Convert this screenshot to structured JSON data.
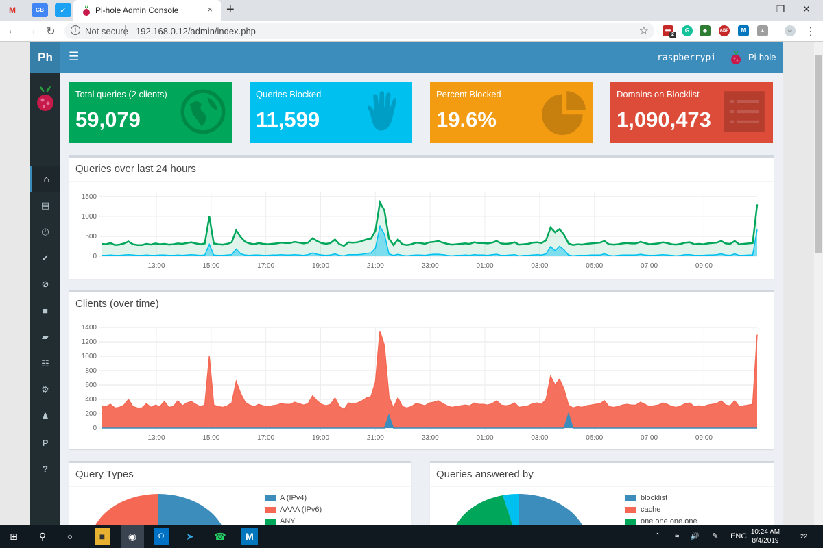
{
  "browser": {
    "pinned_tabs": [
      {
        "icon": "gmail-icon",
        "text": "M",
        "color": "#d93025"
      },
      {
        "icon": "google-translate-icon",
        "text": "GB",
        "color": "#4285f4"
      },
      {
        "icon": "twitter-icon",
        "text": "🐦",
        "color": "#1da1f2"
      }
    ],
    "active_tab_title": "Pi-hole Admin Console",
    "tab_close": "×",
    "new_tab": "+",
    "security_label": "Not secure",
    "url": "192.168.0.12/admin/index.php",
    "extension_badge": "2",
    "extensions": [
      "lastpass-icon",
      "grammarly-icon",
      "raindrop-icon",
      "abp-icon",
      "m-icon",
      "drive-icon"
    ]
  },
  "header": {
    "logo_text": "Ph",
    "hostname": "raspberrypi",
    "brand": "Pi-hole"
  },
  "sidebar": {
    "items": [
      {
        "icon": "home-icon",
        "active": true
      },
      {
        "icon": "document-icon"
      },
      {
        "icon": "clock-icon"
      },
      {
        "icon": "check-circle-icon"
      },
      {
        "icon": "ban-icon"
      },
      {
        "icon": "square-icon"
      },
      {
        "icon": "folder-icon"
      },
      {
        "icon": "sitemap-icon"
      },
      {
        "icon": "gears-icon"
      },
      {
        "icon": "user-times-icon"
      },
      {
        "icon": "paypal-icon"
      },
      {
        "icon": "question-circle-icon"
      }
    ]
  },
  "stats": [
    {
      "label": "Total queries (2 clients)",
      "value": "59,079",
      "color": "#00a65a",
      "icon": "globe-icon"
    },
    {
      "label": "Queries Blocked",
      "value": "11,599",
      "color": "#00c0ef",
      "icon": "hand-icon"
    },
    {
      "label": "Percent Blocked",
      "value": "19.6%",
      "color": "#f39c12",
      "icon": "pie-chart-icon"
    },
    {
      "label": "Domains on Blocklist",
      "value": "1,090,473",
      "color": "#dd4b39",
      "icon": "list-icon"
    }
  ],
  "chart_data": [
    {
      "type": "area",
      "title": "Queries over last 24 hours",
      "x_ticks": [
        "13:00",
        "15:00",
        "17:00",
        "19:00",
        "21:00",
        "23:00",
        "01:00",
        "03:00",
        "05:00",
        "07:00",
        "09:00"
      ],
      "y_ticks": [
        "1500",
        "1000",
        "500",
        "0"
      ],
      "ylim": [
        0,
        1600
      ],
      "grid": true,
      "series": [
        {
          "color": "#00a65a",
          "values": [
            310,
            300,
            330,
            280,
            290,
            320,
            370,
            300,
            280,
            280,
            310,
            290,
            320,
            300,
            310,
            290,
            300,
            320,
            310,
            330,
            350,
            320,
            300,
            320,
            1000,
            320,
            300,
            290,
            310,
            350,
            650,
            480,
            360,
            320,
            300,
            330,
            310,
            300,
            310,
            320,
            340,
            330,
            330,
            360,
            340,
            320,
            340,
            450,
            380,
            330,
            310,
            330,
            420,
            300,
            260,
            350,
            340,
            350,
            380,
            420,
            440,
            640,
            1350,
            1150,
            440,
            280,
            420,
            300,
            280,
            300,
            340,
            330,
            310,
            350,
            360,
            380,
            340,
            310,
            290,
            300,
            310,
            320,
            310,
            350,
            330,
            330,
            320,
            340,
            380,
            320,
            310,
            320,
            350,
            290,
            300,
            310,
            340,
            350,
            330,
            400,
            720,
            600,
            680,
            540,
            320,
            280,
            300,
            290,
            310,
            320,
            330,
            340,
            380,
            300,
            290,
            300,
            320,
            330,
            320,
            320,
            360,
            330,
            300,
            310,
            320,
            350,
            330,
            300,
            290,
            310,
            340,
            350,
            300,
            310,
            300,
            320,
            330,
            340,
            380,
            320,
            310,
            380,
            300,
            310,
            320,
            330,
            1300
          ]
        },
        {
          "color": "#00c0ef",
          "values": [
            20,
            20,
            30,
            20,
            20,
            30,
            40,
            30,
            20,
            20,
            30,
            20,
            20,
            30,
            30,
            20,
            20,
            30,
            20,
            30,
            40,
            30,
            20,
            30,
            300,
            30,
            20,
            20,
            30,
            40,
            180,
            60,
            30,
            20,
            30,
            30,
            20,
            20,
            30,
            30,
            40,
            30,
            30,
            40,
            30,
            20,
            40,
            80,
            50,
            30,
            20,
            30,
            60,
            20,
            10,
            40,
            40,
            40,
            50,
            70,
            80,
            200,
            750,
            550,
            60,
            20,
            50,
            20,
            10,
            20,
            30,
            30,
            20,
            40,
            50,
            50,
            40,
            20,
            10,
            20,
            20,
            30,
            20,
            40,
            30,
            30,
            20,
            40,
            50,
            20,
            20,
            30,
            40,
            10,
            20,
            20,
            30,
            40,
            30,
            60,
            240,
            140,
            250,
            160,
            30,
            10,
            20,
            20,
            20,
            30,
            30,
            30,
            60,
            20,
            10,
            20,
            30,
            30,
            30,
            30,
            50,
            30,
            20,
            20,
            30,
            40,
            30,
            20,
            10,
            20,
            40,
            40,
            20,
            20,
            20,
            30,
            30,
            40,
            60,
            30,
            20,
            60,
            20,
            20,
            30,
            30,
            670
          ]
        }
      ]
    },
    {
      "type": "area",
      "title": "Clients (over time)",
      "x_ticks": [
        "13:00",
        "15:00",
        "17:00",
        "19:00",
        "21:00",
        "23:00",
        "01:00",
        "03:00",
        "05:00",
        "07:00",
        "09:00"
      ],
      "y_ticks": [
        "1400",
        "1200",
        "1000",
        "800",
        "600",
        "400",
        "200",
        "0"
      ],
      "ylim": [
        0,
        1400
      ],
      "grid": true,
      "series": [
        {
          "color": "#f56954",
          "values": [
            310,
            300,
            330,
            280,
            290,
            320,
            400,
            300,
            280,
            280,
            340,
            290,
            320,
            300,
            370,
            290,
            300,
            380,
            310,
            350,
            370,
            330,
            300,
            320,
            1000,
            320,
            300,
            290,
            310,
            350,
            650,
            480,
            360,
            320,
            300,
            330,
            310,
            300,
            310,
            320,
            340,
            330,
            330,
            360,
            340,
            320,
            340,
            450,
            380,
            330,
            310,
            330,
            420,
            300,
            260,
            350,
            340,
            350,
            380,
            420,
            440,
            640,
            1350,
            1150,
            440,
            280,
            420,
            300,
            280,
            300,
            340,
            330,
            310,
            350,
            360,
            380,
            340,
            310,
            290,
            300,
            310,
            320,
            310,
            350,
            330,
            330,
            320,
            340,
            380,
            320,
            310,
            320,
            350,
            290,
            300,
            310,
            340,
            350,
            330,
            400,
            720,
            600,
            680,
            540,
            320,
            280,
            300,
            290,
            310,
            320,
            330,
            340,
            380,
            300,
            290,
            300,
            320,
            330,
            320,
            320,
            360,
            330,
            300,
            310,
            320,
            350,
            330,
            300,
            290,
            310,
            340,
            350,
            300,
            310,
            300,
            320,
            330,
            340,
            380,
            320,
            310,
            380,
            300,
            310,
            320,
            330,
            1300
          ]
        },
        {
          "color": "#3c8dbc",
          "values": [
            0,
            0,
            0,
            0,
            0,
            0,
            0,
            0,
            0,
            0,
            0,
            0,
            0,
            0,
            0,
            0,
            0,
            0,
            0,
            0,
            0,
            0,
            0,
            0,
            0,
            0,
            0,
            0,
            0,
            0,
            0,
            0,
            0,
            0,
            0,
            0,
            0,
            0,
            0,
            0,
            0,
            0,
            0,
            0,
            0,
            0,
            0,
            0,
            0,
            0,
            0,
            0,
            0,
            0,
            0,
            0,
            0,
            0,
            0,
            0,
            0,
            0,
            0,
            0,
            180,
            0,
            0,
            0,
            0,
            0,
            0,
            0,
            0,
            0,
            0,
            0,
            0,
            0,
            0,
            0,
            0,
            0,
            0,
            0,
            0,
            0,
            0,
            0,
            0,
            0,
            0,
            0,
            0,
            0,
            0,
            0,
            0,
            0,
            0,
            0,
            0,
            0,
            0,
            0,
            200,
            0,
            0,
            0,
            0,
            0,
            0,
            0,
            0,
            0,
            0,
            0,
            0,
            0,
            0,
            0,
            0,
            0,
            0,
            0,
            0,
            0,
            0,
            0,
            0,
            0,
            0,
            0,
            0,
            0,
            0,
            0,
            0,
            0,
            0,
            0,
            0,
            0,
            0,
            0,
            0,
            0,
            0
          ]
        }
      ]
    },
    {
      "type": "pie",
      "title": "Query Types",
      "legend": [
        {
          "label": "A (IPv4)",
          "color": "#3c8dbc"
        },
        {
          "label": "AAAA (IPv6)",
          "color": "#f56954"
        },
        {
          "label": "ANY",
          "color": "#00a65a"
        }
      ]
    },
    {
      "type": "pie",
      "title": "Queries answered by",
      "legend": [
        {
          "label": "blocklist",
          "color": "#3c8dbc"
        },
        {
          "label": "cache",
          "color": "#f56954"
        },
        {
          "label": "one.one.one.one",
          "color": "#00a65a"
        }
      ]
    }
  ],
  "taskbar": {
    "language": "ENG",
    "time": "10:24 AM",
    "date": "8/4/2019",
    "notifications": "22"
  }
}
